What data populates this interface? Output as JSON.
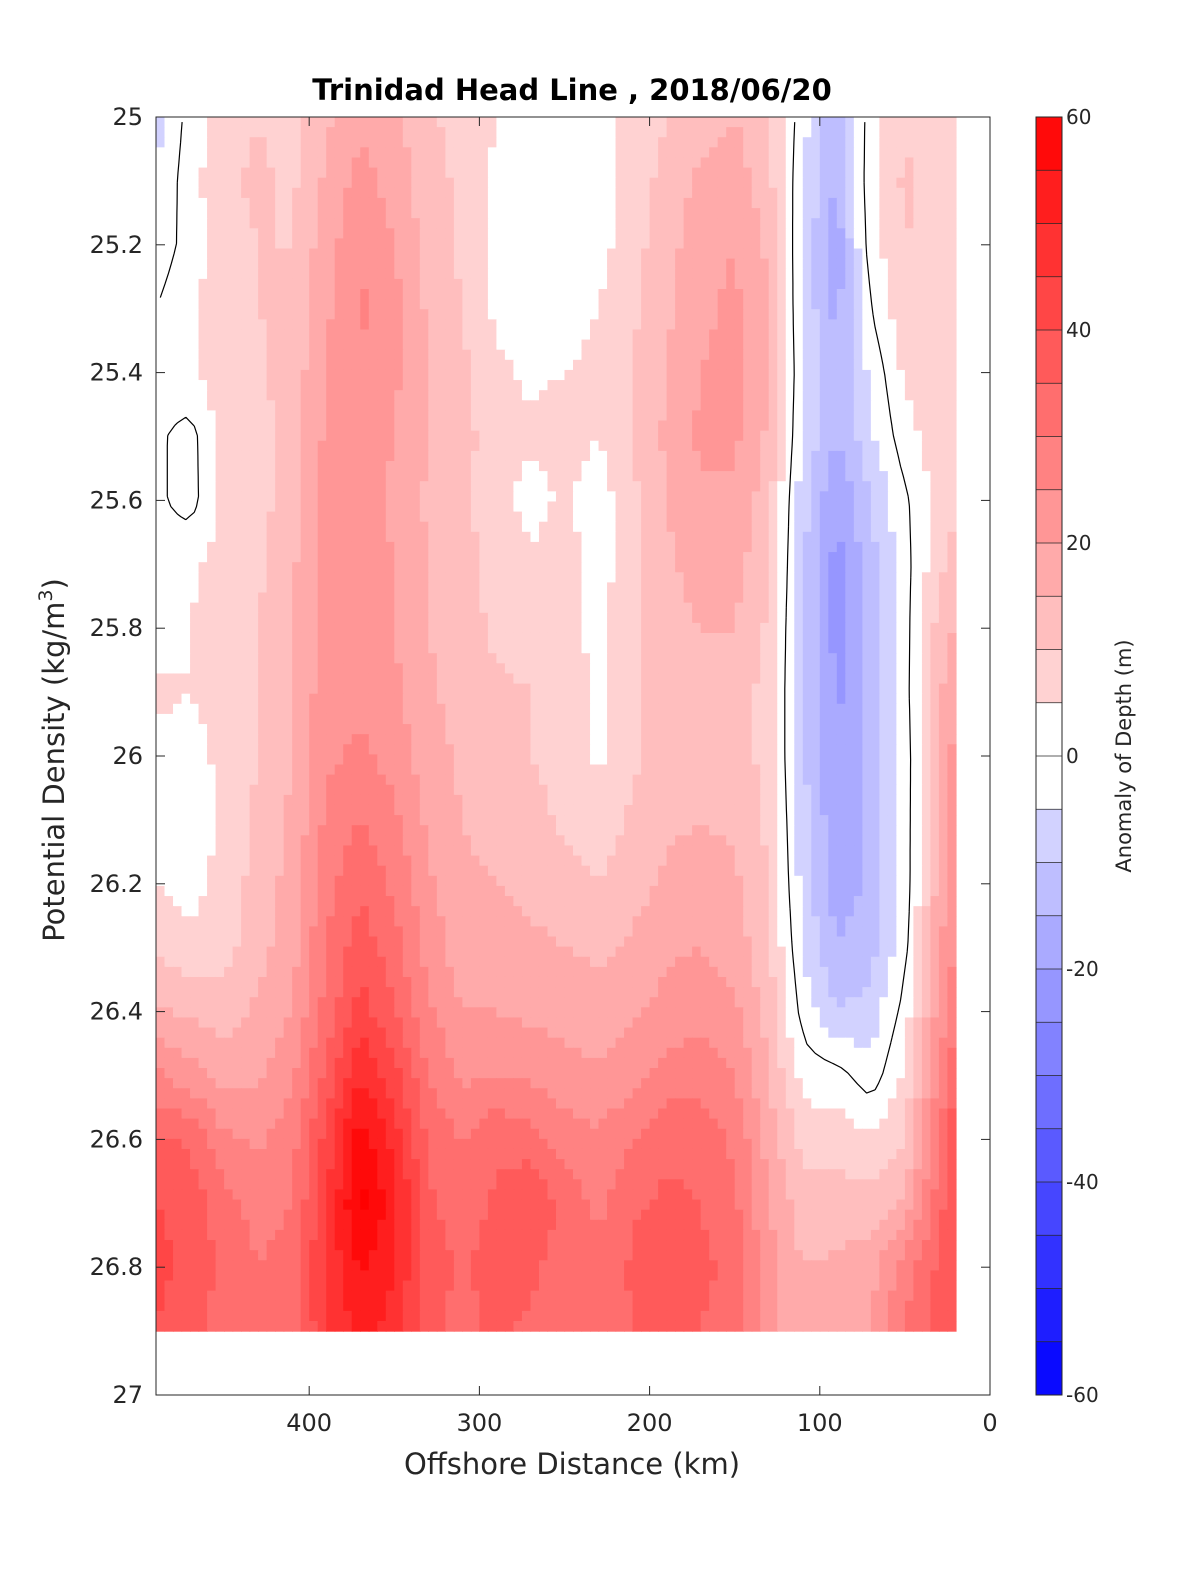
{
  "chart_data": {
    "type": "heatmap",
    "title": "Trinidad Head Line , 2018/06/20",
    "xlabel": "Offshore Distance (km)",
    "ylabel": "Potential Density (kg/m",
    "ylabel_superscript": "3",
    "ylabel_close": ")",
    "xlim": [
      490,
      0
    ],
    "ylim": [
      25,
      27
    ],
    "y_reversed": true,
    "x_ticks": [
      400,
      300,
      200,
      100,
      0
    ],
    "y_ticks": [
      25,
      25.2,
      25.4,
      25.6,
      25.8,
      26,
      26.2,
      26.4,
      26.6,
      26.8,
      27
    ],
    "x_tick_labels": [
      "400",
      "300",
      "200",
      "100",
      "0"
    ],
    "y_tick_labels": [
      "25",
      "25.2",
      "25.4",
      "25.6",
      "25.8",
      "26",
      "26.2",
      "26.4",
      "26.6",
      "26.8",
      "27"
    ],
    "colorbar": {
      "label": "Anomaly of Depth (m)",
      "range": [
        -60,
        60
      ],
      "step": 5,
      "ticks": [
        60,
        40,
        20,
        0,
        -20,
        -40,
        -60
      ],
      "tick_labels": [
        "60",
        "40",
        "20",
        "0",
        "-20",
        "-40",
        "-60"
      ],
      "low_color": "#0000ff",
      "high_color": "#ff0000",
      "mid_color": "#ffffff"
    },
    "data_extent": {
      "x_max_km": 490,
      "x_min_km": 20,
      "sigma_max": 26.9
    },
    "x": [
      490,
      470,
      450,
      430,
      410,
      390,
      370,
      350,
      330,
      310,
      290,
      270,
      250,
      230,
      210,
      190,
      170,
      150,
      130,
      110,
      90,
      70,
      50,
      30,
      20
    ],
    "y": [
      25.0,
      25.1,
      25.2,
      25.3,
      25.4,
      25.5,
      25.6,
      25.7,
      25.8,
      25.9,
      26.0,
      26.1,
      26.2,
      26.3,
      26.4,
      26.5,
      26.6,
      26.7,
      26.8,
      26.9
    ],
    "z": [
      [
        -7,
        2,
        8,
        10,
        8,
        14,
        19,
        16,
        11,
        8,
        5,
        2,
        3,
        4,
        6,
        10,
        13,
        15,
        10,
        -3,
        -14,
        3,
        9,
        7,
        7
      ],
      [
        -5,
        3,
        9,
        11,
        9,
        16,
        22,
        18,
        12,
        9,
        4,
        1,
        2,
        3,
        7,
        12,
        16,
        18,
        12,
        -5,
        -16,
        4,
        11,
        8,
        7
      ],
      [
        -3,
        2,
        8,
        10,
        10,
        18,
        24,
        20,
        13,
        9,
        3,
        1,
        2,
        3,
        8,
        13,
        18,
        20,
        14,
        -6,
        -18,
        3,
        10,
        8,
        7
      ],
      [
        0,
        4,
        9,
        10,
        11,
        19,
        26,
        22,
        14,
        10,
        4,
        2,
        3,
        5,
        9,
        14,
        19,
        21,
        15,
        -6,
        -17,
        0,
        9,
        9,
        8
      ],
      [
        2,
        4,
        8,
        9,
        12,
        20,
        24,
        21,
        15,
        11,
        6,
        4,
        5,
        6,
        10,
        15,
        20,
        22,
        15,
        -5,
        -14,
        -4,
        6,
        9,
        8
      ],
      [
        1,
        -2,
        7,
        8,
        13,
        21,
        23,
        20,
        15,
        12,
        7,
        6,
        7,
        5,
        10,
        16,
        21,
        21,
        14,
        -6,
        -15,
        -6,
        3,
        8,
        8
      ],
      [
        1,
        -2,
        6,
        8,
        13,
        21,
        22,
        19,
        14,
        11,
        7,
        3,
        6,
        2,
        9,
        15,
        19,
        19,
        12,
        -8,
        -20,
        -10,
        -1,
        7,
        9
      ],
      [
        2,
        4,
        7,
        9,
        14,
        22,
        22,
        20,
        15,
        12,
        8,
        6,
        7,
        3,
        8,
        14,
        17,
        17,
        11,
        -9,
        -22,
        -12,
        -2,
        9,
        12
      ],
      [
        3,
        5,
        8,
        10,
        15,
        22,
        23,
        20,
        15,
        12,
        9,
        8,
        8,
        3,
        9,
        13,
        15,
        15,
        9,
        -9,
        -22,
        -13,
        -2,
        12,
        16
      ],
      [
        6,
        5,
        8,
        10,
        15,
        23,
        24,
        21,
        16,
        13,
        11,
        10,
        9,
        3,
        9,
        13,
        14,
        13,
        8,
        -9,
        -21,
        -14,
        -2,
        14,
        20
      ],
      [
        4,
        2,
        7,
        10,
        15,
        24,
        26,
        23,
        17,
        14,
        12,
        10,
        8,
        4,
        9,
        13,
        14,
        13,
        8,
        -9,
        -20,
        -14,
        -3,
        15,
        22
      ],
      [
        3,
        1,
        6,
        11,
        16,
        26,
        30,
        26,
        19,
        15,
        13,
        12,
        9,
        7,
        11,
        14,
        15,
        14,
        9,
        -8,
        -19,
        -14,
        -3,
        16,
        24
      ],
      [
        5,
        3,
        7,
        12,
        17,
        28,
        34,
        29,
        21,
        16,
        15,
        14,
        12,
        10,
        13,
        16,
        17,
        16,
        10,
        -7,
        -18,
        -14,
        -3,
        17,
        24
      ],
      [
        9,
        6,
        8,
        13,
        18,
        30,
        38,
        32,
        23,
        17,
        17,
        16,
        15,
        14,
        16,
        19,
        20,
        18,
        11,
        -5,
        -15,
        -12,
        -2,
        19,
        26
      ],
      [
        16,
        14,
        13,
        16,
        20,
        32,
        42,
        36,
        26,
        20,
        20,
        19,
        18,
        17,
        19,
        22,
        23,
        21,
        13,
        -2,
        -10,
        -8,
        2,
        22,
        28
      ],
      [
        26,
        22,
        18,
        19,
        24,
        36,
        50,
        42,
        30,
        24,
        25,
        24,
        22,
        21,
        23,
        27,
        28,
        25,
        15,
        3,
        2,
        -3,
        6,
        26,
        34
      ],
      [
        36,
        34,
        26,
        24,
        28,
        42,
        58,
        48,
        34,
        30,
        34,
        32,
        28,
        26,
        30,
        34,
        33,
        29,
        18,
        8,
        8,
        6,
        10,
        30,
        40
      ],
      [
        40,
        38,
        32,
        28,
        30,
        44,
        62,
        52,
        36,
        32,
        36,
        40,
        33,
        29,
        34,
        36,
        35,
        31,
        20,
        12,
        12,
        12,
        16,
        33,
        40
      ],
      [
        42,
        38,
        34,
        30,
        32,
        46,
        56,
        50,
        38,
        34,
        38,
        36,
        33,
        31,
        36,
        40,
        36,
        34,
        22,
        15,
        16,
        18,
        28,
        36,
        40
      ],
      [
        40,
        36,
        33,
        30,
        33,
        44,
        52,
        48,
        36,
        33,
        36,
        34,
        32,
        31,
        35,
        38,
        35,
        33,
        22,
        15,
        16,
        20,
        30,
        36,
        40
      ]
    ]
  }
}
